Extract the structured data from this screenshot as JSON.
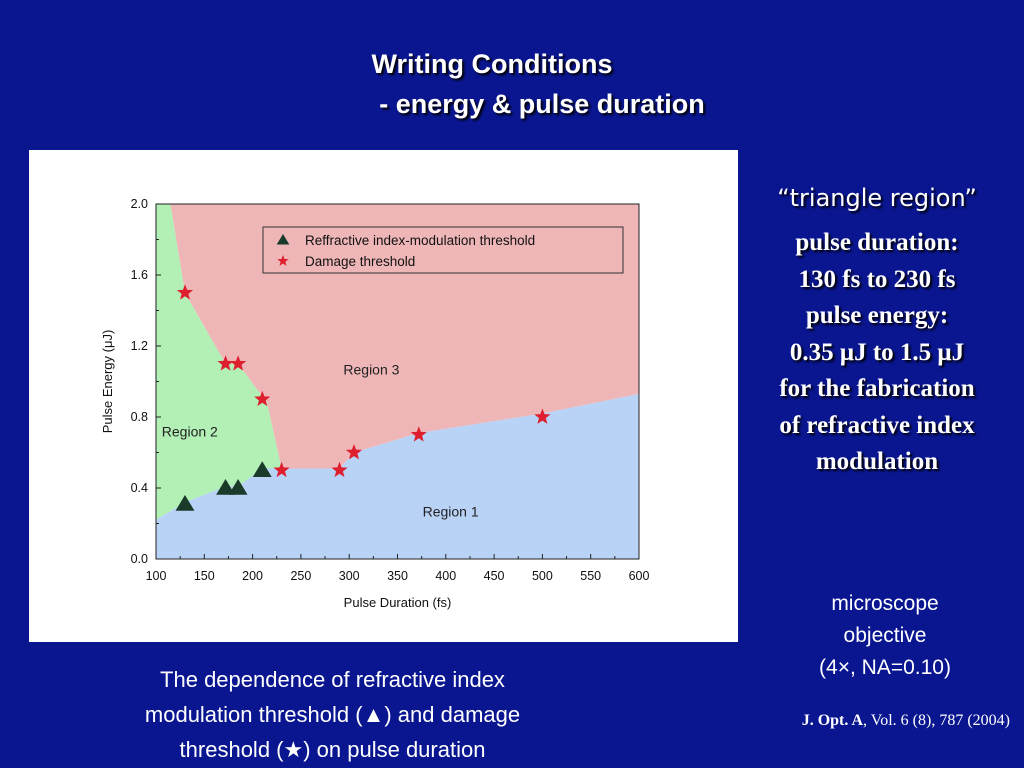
{
  "slide": {
    "title_line1": "Writing Conditions",
    "title_line2": "- energy & pulse duration",
    "side_quote_open": "“",
    "side_quote_text": "triangle region",
    "side_quote_close": "”",
    "side_lines": [
      "pulse duration:",
      "130 fs to 230 fs",
      "pulse energy:",
      "0.35 μJ to 1.5 μJ",
      "for the fabrication",
      "of refractive index",
      "modulation"
    ],
    "objective_lines": [
      "microscope",
      "objective",
      "(4×, NA=0.10)"
    ],
    "caption_lines": [
      "The dependence of refractive index",
      "modulation threshold (▲) and damage",
      "threshold (★) on pulse duration"
    ],
    "citation_journal": "J. Opt. A",
    "citation_rest": ", Vol. 6 (8), 787 (2004)"
  },
  "chart_data": {
    "type": "scatter",
    "xlabel": "Pulse Duration (fs)",
    "ylabel": "Pulse Energy (μJ)",
    "xlim": [
      100,
      600
    ],
    "ylim": [
      0.0,
      2.0
    ],
    "xticks": [
      100,
      150,
      200,
      250,
      300,
      350,
      400,
      450,
      500,
      550,
      600
    ],
    "yticks": [
      0.0,
      0.4,
      0.8,
      1.2,
      1.6,
      2.0
    ],
    "ytick_labels": [
      "0.0",
      "0.4",
      "0.8",
      "1.2",
      "1.6",
      "2.0"
    ],
    "series": [
      {
        "name": "Reffractive index-modulation threshold",
        "marker": "triangle",
        "color": "#1a3a2a",
        "points": [
          [
            130,
            0.31
          ],
          [
            172,
            0.4
          ],
          [
            185,
            0.4
          ],
          [
            210,
            0.5
          ]
        ]
      },
      {
        "name": "Damage threshold",
        "marker": "star",
        "color": "#dd1f2e",
        "points": [
          [
            130,
            1.5
          ],
          [
            172,
            1.1
          ],
          [
            185,
            1.1
          ],
          [
            210,
            0.9
          ],
          [
            230,
            0.5
          ],
          [
            290,
            0.5
          ],
          [
            305,
            0.6
          ],
          [
            372,
            0.7
          ],
          [
            500,
            0.8
          ]
        ]
      }
    ],
    "regions": [
      {
        "label": "Region 1",
        "label_at": [
          405,
          0.24
        ],
        "color": "#b9d3f7",
        "polygon": [
          [
            100,
            0.0
          ],
          [
            600,
            0.0
          ],
          [
            600,
            0.93
          ],
          [
            500,
            0.82
          ],
          [
            372,
            0.71
          ],
          [
            305,
            0.6
          ],
          [
            290,
            0.51
          ],
          [
            230,
            0.51
          ],
          [
            210,
            0.51
          ],
          [
            185,
            0.41
          ],
          [
            172,
            0.41
          ],
          [
            130,
            0.32
          ],
          [
            100,
            0.22
          ]
        ]
      },
      {
        "label": "Region 2",
        "label_at": [
          135,
          0.69
        ],
        "color": "#b2f0b6",
        "polygon": [
          [
            100,
            0.22
          ],
          [
            130,
            0.32
          ],
          [
            172,
            0.41
          ],
          [
            185,
            0.41
          ],
          [
            210,
            0.51
          ],
          [
            230,
            0.51
          ],
          [
            215,
            0.88
          ],
          [
            185,
            1.1
          ],
          [
            172,
            1.1
          ],
          [
            130,
            1.5
          ],
          [
            115,
            2.0
          ],
          [
            100,
            2.0
          ]
        ]
      },
      {
        "label": "Region 3",
        "label_at": [
          323,
          1.04
        ],
        "color": "#efb6b8",
        "polygon": [
          [
            115,
            2.0
          ],
          [
            600,
            2.0
          ],
          [
            600,
            0.93
          ],
          [
            500,
            0.82
          ],
          [
            372,
            0.71
          ],
          [
            305,
            0.6
          ],
          [
            290,
            0.51
          ],
          [
            230,
            0.51
          ],
          [
            215,
            0.88
          ],
          [
            185,
            1.1
          ],
          [
            172,
            1.1
          ],
          [
            130,
            1.5
          ]
        ]
      }
    ],
    "legend": "top-right"
  }
}
